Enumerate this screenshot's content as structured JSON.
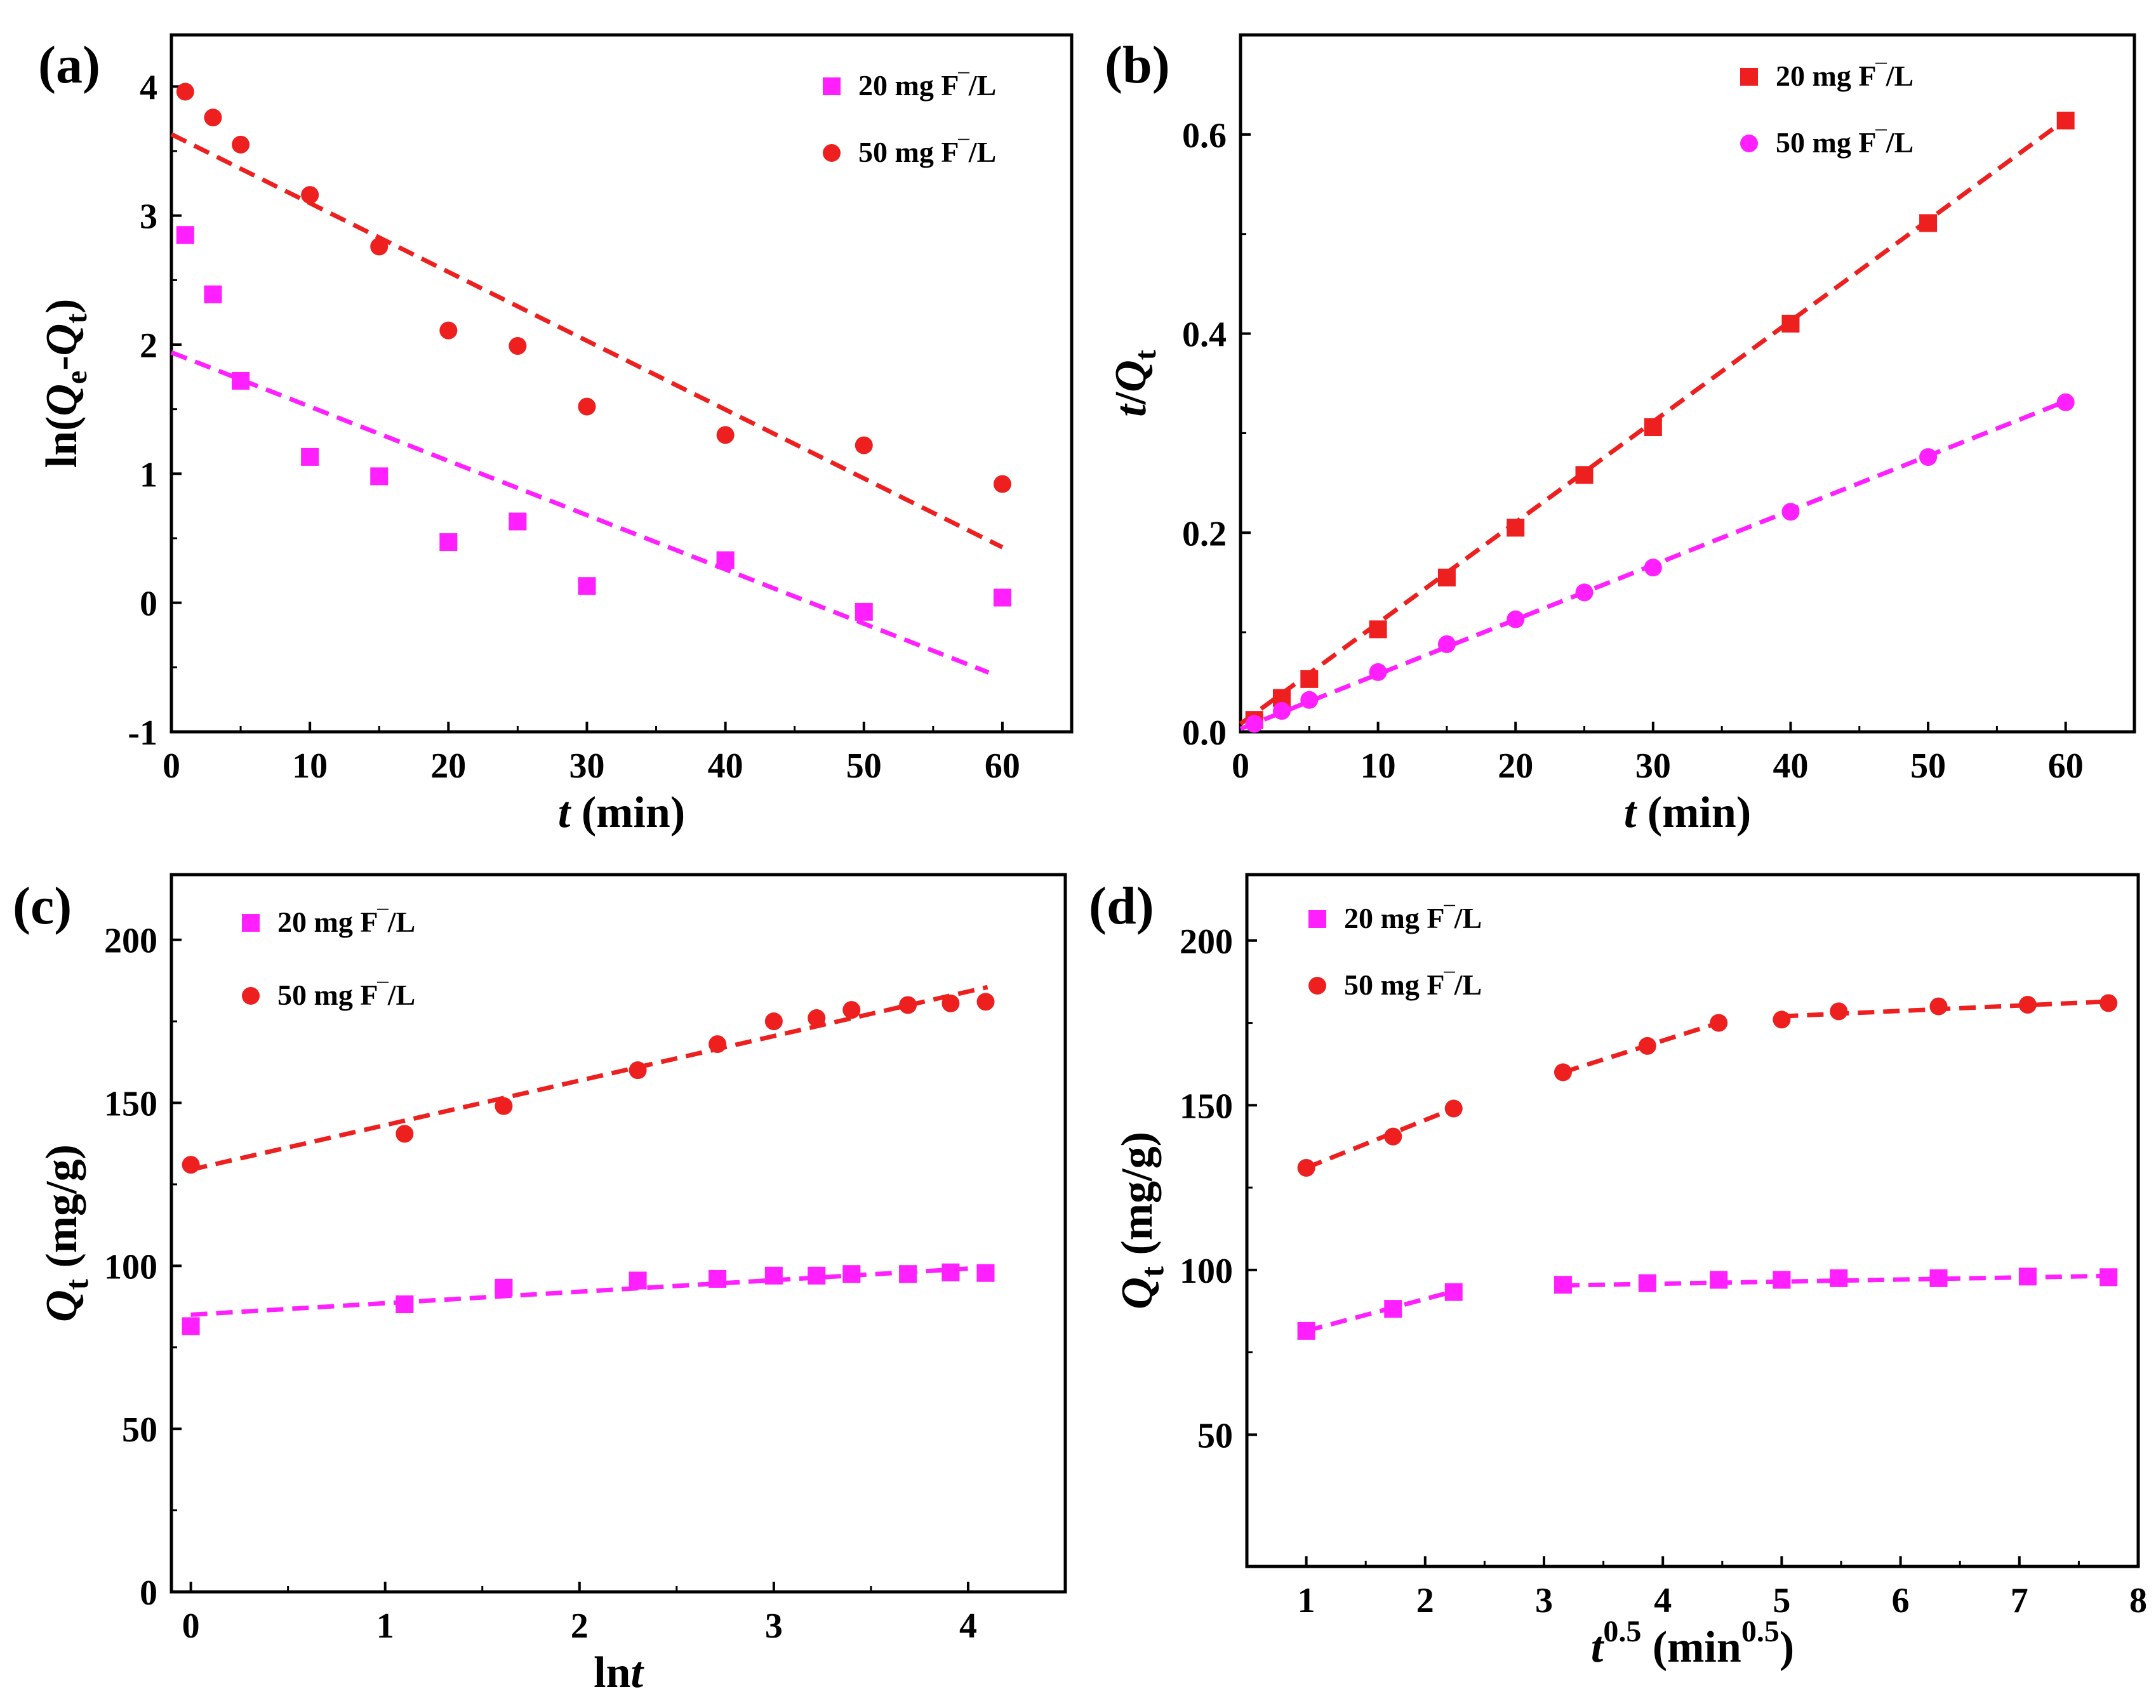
{
  "colors": {
    "magenta": "#ff1fff",
    "red": "#ee1f1f",
    "axis": "#000000"
  },
  "chart_data": [
    {
      "type": "scatter",
      "panel": "(a)",
      "xlabel_italic": "t",
      "xlabel_rest": " (min)",
      "ylabel_parts": [
        "ln(",
        "Q",
        "e",
        "-",
        "Q",
        "t",
        ")"
      ],
      "xlim": [
        0,
        65
      ],
      "ylim": [
        -1,
        4.4
      ],
      "xticks": [
        0,
        10,
        20,
        30,
        40,
        50,
        60
      ],
      "yticks": [
        -1,
        0,
        1,
        2,
        3,
        4
      ],
      "legend_position": "top-right",
      "series": [
        {
          "name": "20 mg F‾/L",
          "marker": "square",
          "color": "#ff1fff",
          "x": [
            1,
            3,
            5,
            10,
            15,
            20,
            25,
            30,
            40,
            50,
            60
          ],
          "y": [
            2.85,
            2.39,
            1.72,
            1.13,
            0.98,
            0.47,
            0.63,
            0.13,
            0.33,
            -0.07,
            0.04
          ],
          "fit": {
            "x": [
              0,
              59
            ],
            "y": [
              1.94,
              -0.54
            ]
          }
        },
        {
          "name": "50 mg F‾/L",
          "marker": "circle",
          "color": "#ee1f1f",
          "x": [
            1,
            3,
            5,
            10,
            15,
            20,
            25,
            30,
            40,
            50,
            60
          ],
          "y": [
            3.96,
            3.76,
            3.55,
            3.16,
            2.76,
            2.11,
            1.99,
            1.52,
            1.3,
            1.22,
            0.92
          ],
          "fit": {
            "x": [
              0,
              60
            ],
            "y": [
              3.63,
              0.43
            ]
          }
        }
      ]
    },
    {
      "type": "scatter",
      "panel": "(b)",
      "xlabel_italic": "t",
      "xlabel_rest": " (min)",
      "ylabel_parts": [
        "t",
        "/",
        "Q",
        "t"
      ],
      "xlim": [
        0,
        65
      ],
      "ylim": [
        0,
        0.7
      ],
      "xticks": [
        0,
        10,
        20,
        30,
        40,
        50,
        60
      ],
      "yticks": [
        0.0,
        0.2,
        0.4,
        0.6
      ],
      "ytick_labels": [
        "0.0",
        "0.2",
        "0.4",
        "0.6"
      ],
      "legend_position": "top-right",
      "series": [
        {
          "name": "20 mg F‾/L",
          "marker": "square",
          "color": "#ee1f1f",
          "x": [
            1,
            3,
            5,
            10,
            15,
            20,
            25,
            30,
            40,
            50,
            60
          ],
          "y": [
            0.012,
            0.034,
            0.053,
            0.103,
            0.155,
            0.205,
            0.258,
            0.306,
            0.41,
            0.511,
            0.614
          ],
          "fit": {
            "x": [
              0,
              60
            ],
            "y": [
              0.008,
              0.615
            ]
          }
        },
        {
          "name": "50 mg F‾/L",
          "marker": "circle",
          "color": "#ff1fff",
          "x": [
            1,
            3,
            5,
            10,
            15,
            20,
            25,
            30,
            40,
            50,
            60
          ],
          "y": [
            0.008,
            0.021,
            0.032,
            0.06,
            0.088,
            0.113,
            0.14,
            0.165,
            0.221,
            0.276,
            0.331
          ],
          "fit": {
            "x": [
              0,
              60
            ],
            "y": [
              0.003,
              0.332
            ]
          }
        }
      ]
    },
    {
      "type": "scatter",
      "panel": "(c)",
      "xlabel_parts": [
        "ln",
        "t"
      ],
      "ylabel_parts": [
        "Q",
        "t",
        " (mg/g)"
      ],
      "xlim": [
        -0.1,
        4.5
      ],
      "ylim": [
        0,
        220
      ],
      "xticks": [
        0,
        1,
        2,
        3,
        4
      ],
      "yticks": [
        0,
        50,
        100,
        150,
        200
      ],
      "legend_position": "top-left",
      "series": [
        {
          "name": "20 mg F‾/L",
          "marker": "square",
          "color": "#ff1fff",
          "x": [
            0,
            1.1,
            1.61,
            2.3,
            2.71,
            3.0,
            3.22,
            3.4,
            3.69,
            3.91,
            4.09
          ],
          "y": [
            81.5,
            88.2,
            93.3,
            95.5,
            96.0,
            97.0,
            97.0,
            97.5,
            97.5,
            98.0,
            97.8
          ],
          "fit": {
            "x": [
              0,
              4.1
            ],
            "y": [
              85.0,
              99.5
            ]
          }
        },
        {
          "name": "50 mg F‾/L",
          "marker": "circle",
          "color": "#ee1f1f",
          "x": [
            0,
            1.1,
            1.61,
            2.3,
            2.71,
            3.0,
            3.22,
            3.4,
            3.69,
            3.91,
            4.09
          ],
          "y": [
            131.0,
            140.5,
            149.0,
            160.0,
            168.0,
            175.0,
            176.0,
            178.5,
            180.0,
            180.5,
            181.0
          ],
          "fit": {
            "x": [
              0,
              4.1
            ],
            "y": [
              129.5,
              185.5
            ]
          }
        }
      ]
    },
    {
      "type": "scatter",
      "panel": "(d)",
      "xlabel_parts": [
        "t",
        "0.5",
        " (min",
        "0.5",
        ")"
      ],
      "ylabel_parts": [
        "Q",
        "t",
        " (mg/g)"
      ],
      "xlim": [
        0.5,
        8
      ],
      "ylim": [
        10,
        220
      ],
      "xticks": [
        1,
        2,
        3,
        4,
        5,
        6,
        7,
        8
      ],
      "yticks": [
        50,
        100,
        150,
        200
      ],
      "legend_position": "top-left",
      "series": [
        {
          "name": "20 mg F‾/L",
          "marker": "square",
          "color": "#ff1fff",
          "x": [
            1,
            1.73,
            2.24,
            3.16,
            3.87,
            4.47,
            5.0,
            5.48,
            6.32,
            7.07,
            7.75
          ],
          "y": [
            81.5,
            88.2,
            93.3,
            95.5,
            96.0,
            97.0,
            97.0,
            97.5,
            97.5,
            98.0,
            97.8
          ],
          "fits": [
            {
              "x": [
                1,
                2.24
              ],
              "y": [
                81.5,
                93.5
              ]
            },
            {
              "x": [
                3.16,
                7.75
              ],
              "y": [
                95.3,
                98.2
              ]
            }
          ]
        },
        {
          "name": "50 mg F‾/L",
          "marker": "circle",
          "color": "#ee1f1f",
          "x": [
            1,
            1.73,
            2.24,
            3.16,
            3.87,
            4.47,
            5.0,
            5.48,
            6.32,
            7.07,
            7.75
          ],
          "y": [
            131.0,
            140.5,
            149.0,
            160.0,
            168.0,
            175.0,
            176.0,
            178.5,
            180.0,
            180.5,
            181.0
          ],
          "fits": [
            {
              "x": [
                1,
                2.24
              ],
              "y": [
                131.0,
                149.0
              ]
            },
            {
              "x": [
                3.16,
                4.47
              ],
              "y": [
                160.0,
                175.0
              ]
            },
            {
              "x": [
                5.0,
                7.75
              ],
              "y": [
                177.0,
                181.5
              ]
            }
          ]
        }
      ]
    }
  ]
}
